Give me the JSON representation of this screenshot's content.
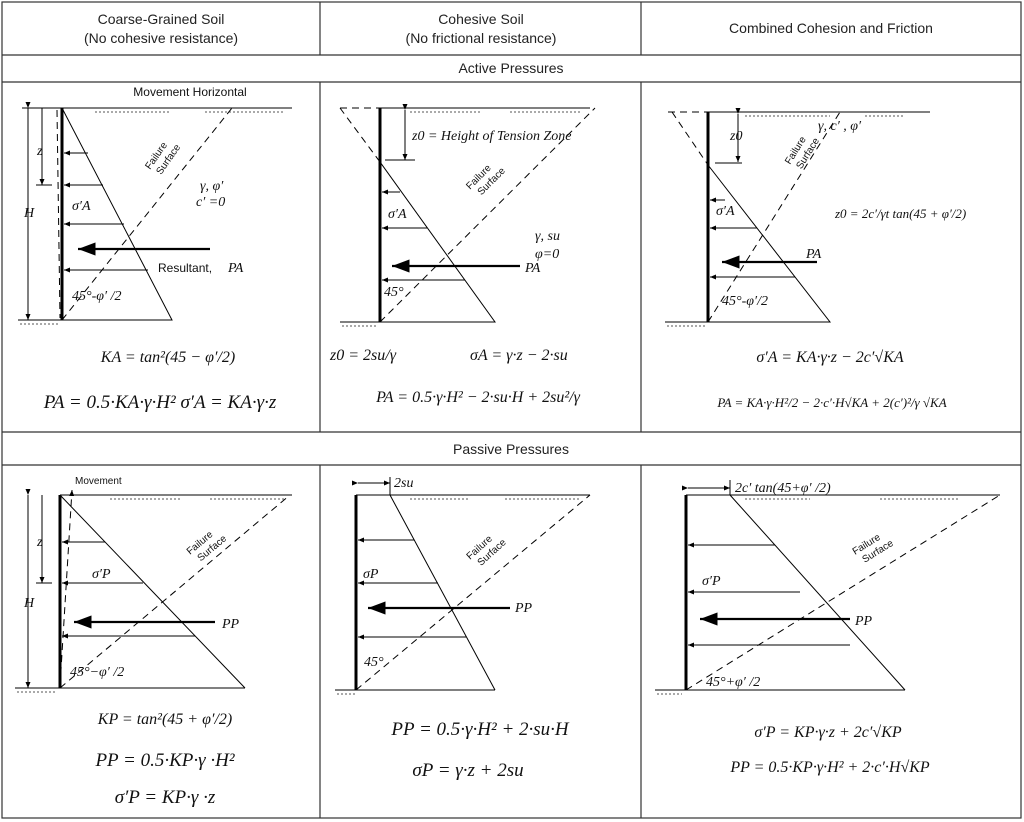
{
  "headers": [
    "Coarse-Grained Soil",
    "(No cohesive resistance)",
    "Cohesive Soil",
    "(No frictional resistance)",
    "Combined Cohesion and Friction"
  ],
  "sections": {
    "active": "Active Pressures",
    "passive": "Passive Pressures"
  },
  "active": {
    "coarse": {
      "movement": "Movement Horizontal",
      "failure1": "Failure",
      "failure2": "Surface",
      "props1": "γ, φ′",
      "props2": "c′ =0",
      "sigma": "σ′A",
      "z": "z",
      "H": "H",
      "resultant": "Resultant,",
      "PA": "PA",
      "angle": "45°-φ′ /2",
      "f1": "KA = tan²(45 − φ′/2)",
      "f2": "PA = 0.5·KA·γ·H²    σ′A = KA·γ·z"
    },
    "cohesive": {
      "z0": "z0 = Height of Tension Zone",
      "failure1": "Failure",
      "failure2": "Surface",
      "props1": "γ, su",
      "props2": "φ=0",
      "sigma": "σ′A",
      "PA": "PA",
      "angle": "45°",
      "f1": "z0 = 2su/γ",
      "f2": "σA = γ·z − 2·su",
      "f3": "PA = 0.5·γ·H² − 2·su·H + 2su²/γ"
    },
    "combined": {
      "z0": "z0",
      "failure1": "Failure",
      "failure2": "Surface",
      "props": "γ, c′ , φ′",
      "z0eq": "z0 = 2c′/γt tan(45 + φ′/2)",
      "sigma": "σ′A",
      "PA": "PA",
      "angle": "45°-φ′/2",
      "f1": "σ′A = KA·γ·z − 2c′√KA",
      "f2": "PA = KA·γ·H²/2 − 2·c′·H√KA + 2(c′)²/γ √KA"
    }
  },
  "passive": {
    "coarse": {
      "movement": "Movement",
      "failure1": "Failure",
      "failure2": "Surface",
      "z": "z",
      "H": "H",
      "sigma": "σ′P",
      "PP": "PP",
      "angle": "45°−φ′ /2",
      "f1": "KP = tan²(45 + φ′/2)",
      "f2": "PP = 0.5·KP·γ ·H²",
      "f3": "σ′P = KP·γ ·z"
    },
    "cohesive": {
      "dim": "2su",
      "failure1": "Failure",
      "failure2": "Surface",
      "sigma": "σP",
      "PP": "PP",
      "angle": "45°",
      "f1": "PP = 0.5·γ·H² + 2·su·H",
      "f2": "σP = γ·z + 2su"
    },
    "combined": {
      "dim": "2c′ tan(45+φ′ /2)",
      "failure1": "Failure",
      "failure2": "Surface",
      "sigma": "σ′P",
      "PP": "PP",
      "angle": "45°+φ′ /2",
      "f1": "σ′P = KP·γ·z + 2c′√KP",
      "f2": "PP = 0.5·KP·γ·H² + 2·c′·H√KP"
    }
  }
}
